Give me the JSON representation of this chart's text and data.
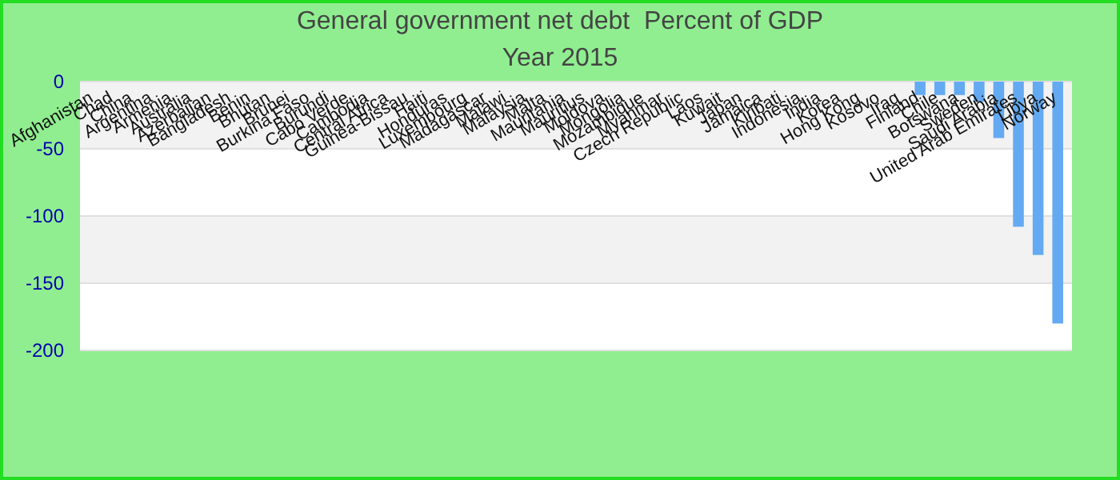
{
  "chart_data": {
    "type": "bar",
    "title": "General government net debt  Percent of GDP",
    "subtitle": "Year 2015",
    "categories": [
      "Afghanistan",
      "Chad",
      "China",
      "Argentina",
      "Armenia",
      "Australia",
      "Azerbaijan",
      "Bangladesh",
      "Benin",
      "Bhutan",
      "Brunei",
      "Burkina Faso",
      "Burundi",
      "Cabo Verde",
      "Cambodia",
      "Central Africa",
      "Guinea-Bissau",
      "Haiti",
      "Honduras",
      "Luxembourg",
      "Madagascar",
      "Malawi",
      "Malaysia",
      "Malta",
      "Mauritania",
      "Mauritius",
      "Moldova",
      "Mongolia",
      "Mozambique",
      "Myanmar",
      "Czech Republic",
      "Laos",
      "Kuwait",
      "Japan",
      "Jamaica",
      "Kiribati",
      "Indonesia",
      "India",
      "Korea",
      "Hong Kong",
      "Kosovo",
      "Iraq",
      "Finland",
      "Chile",
      "Botswana",
      "Sweden",
      "Saudi Arabia",
      "United Arab Emirates",
      "Libya",
      "Norway"
    ],
    "values": [
      0,
      0,
      0,
      0,
      0,
      0,
      0,
      0,
      0,
      0,
      0,
      0,
      0,
      0,
      0,
      0,
      0,
      0,
      0,
      0,
      0,
      0,
      0,
      0,
      0,
      0,
      0,
      0,
      0,
      0,
      0,
      0,
      0,
      0,
      0,
      0,
      0,
      0,
      0,
      0,
      0,
      0,
      -10,
      -10,
      -10,
      -15,
      -42,
      -108,
      -129,
      -180
    ],
    "color": "#63aaf2",
    "ylim": [
      -200,
      0
    ],
    "yticks": [
      -200,
      -150,
      -100,
      -50,
      0
    ],
    "grid": "y"
  }
}
